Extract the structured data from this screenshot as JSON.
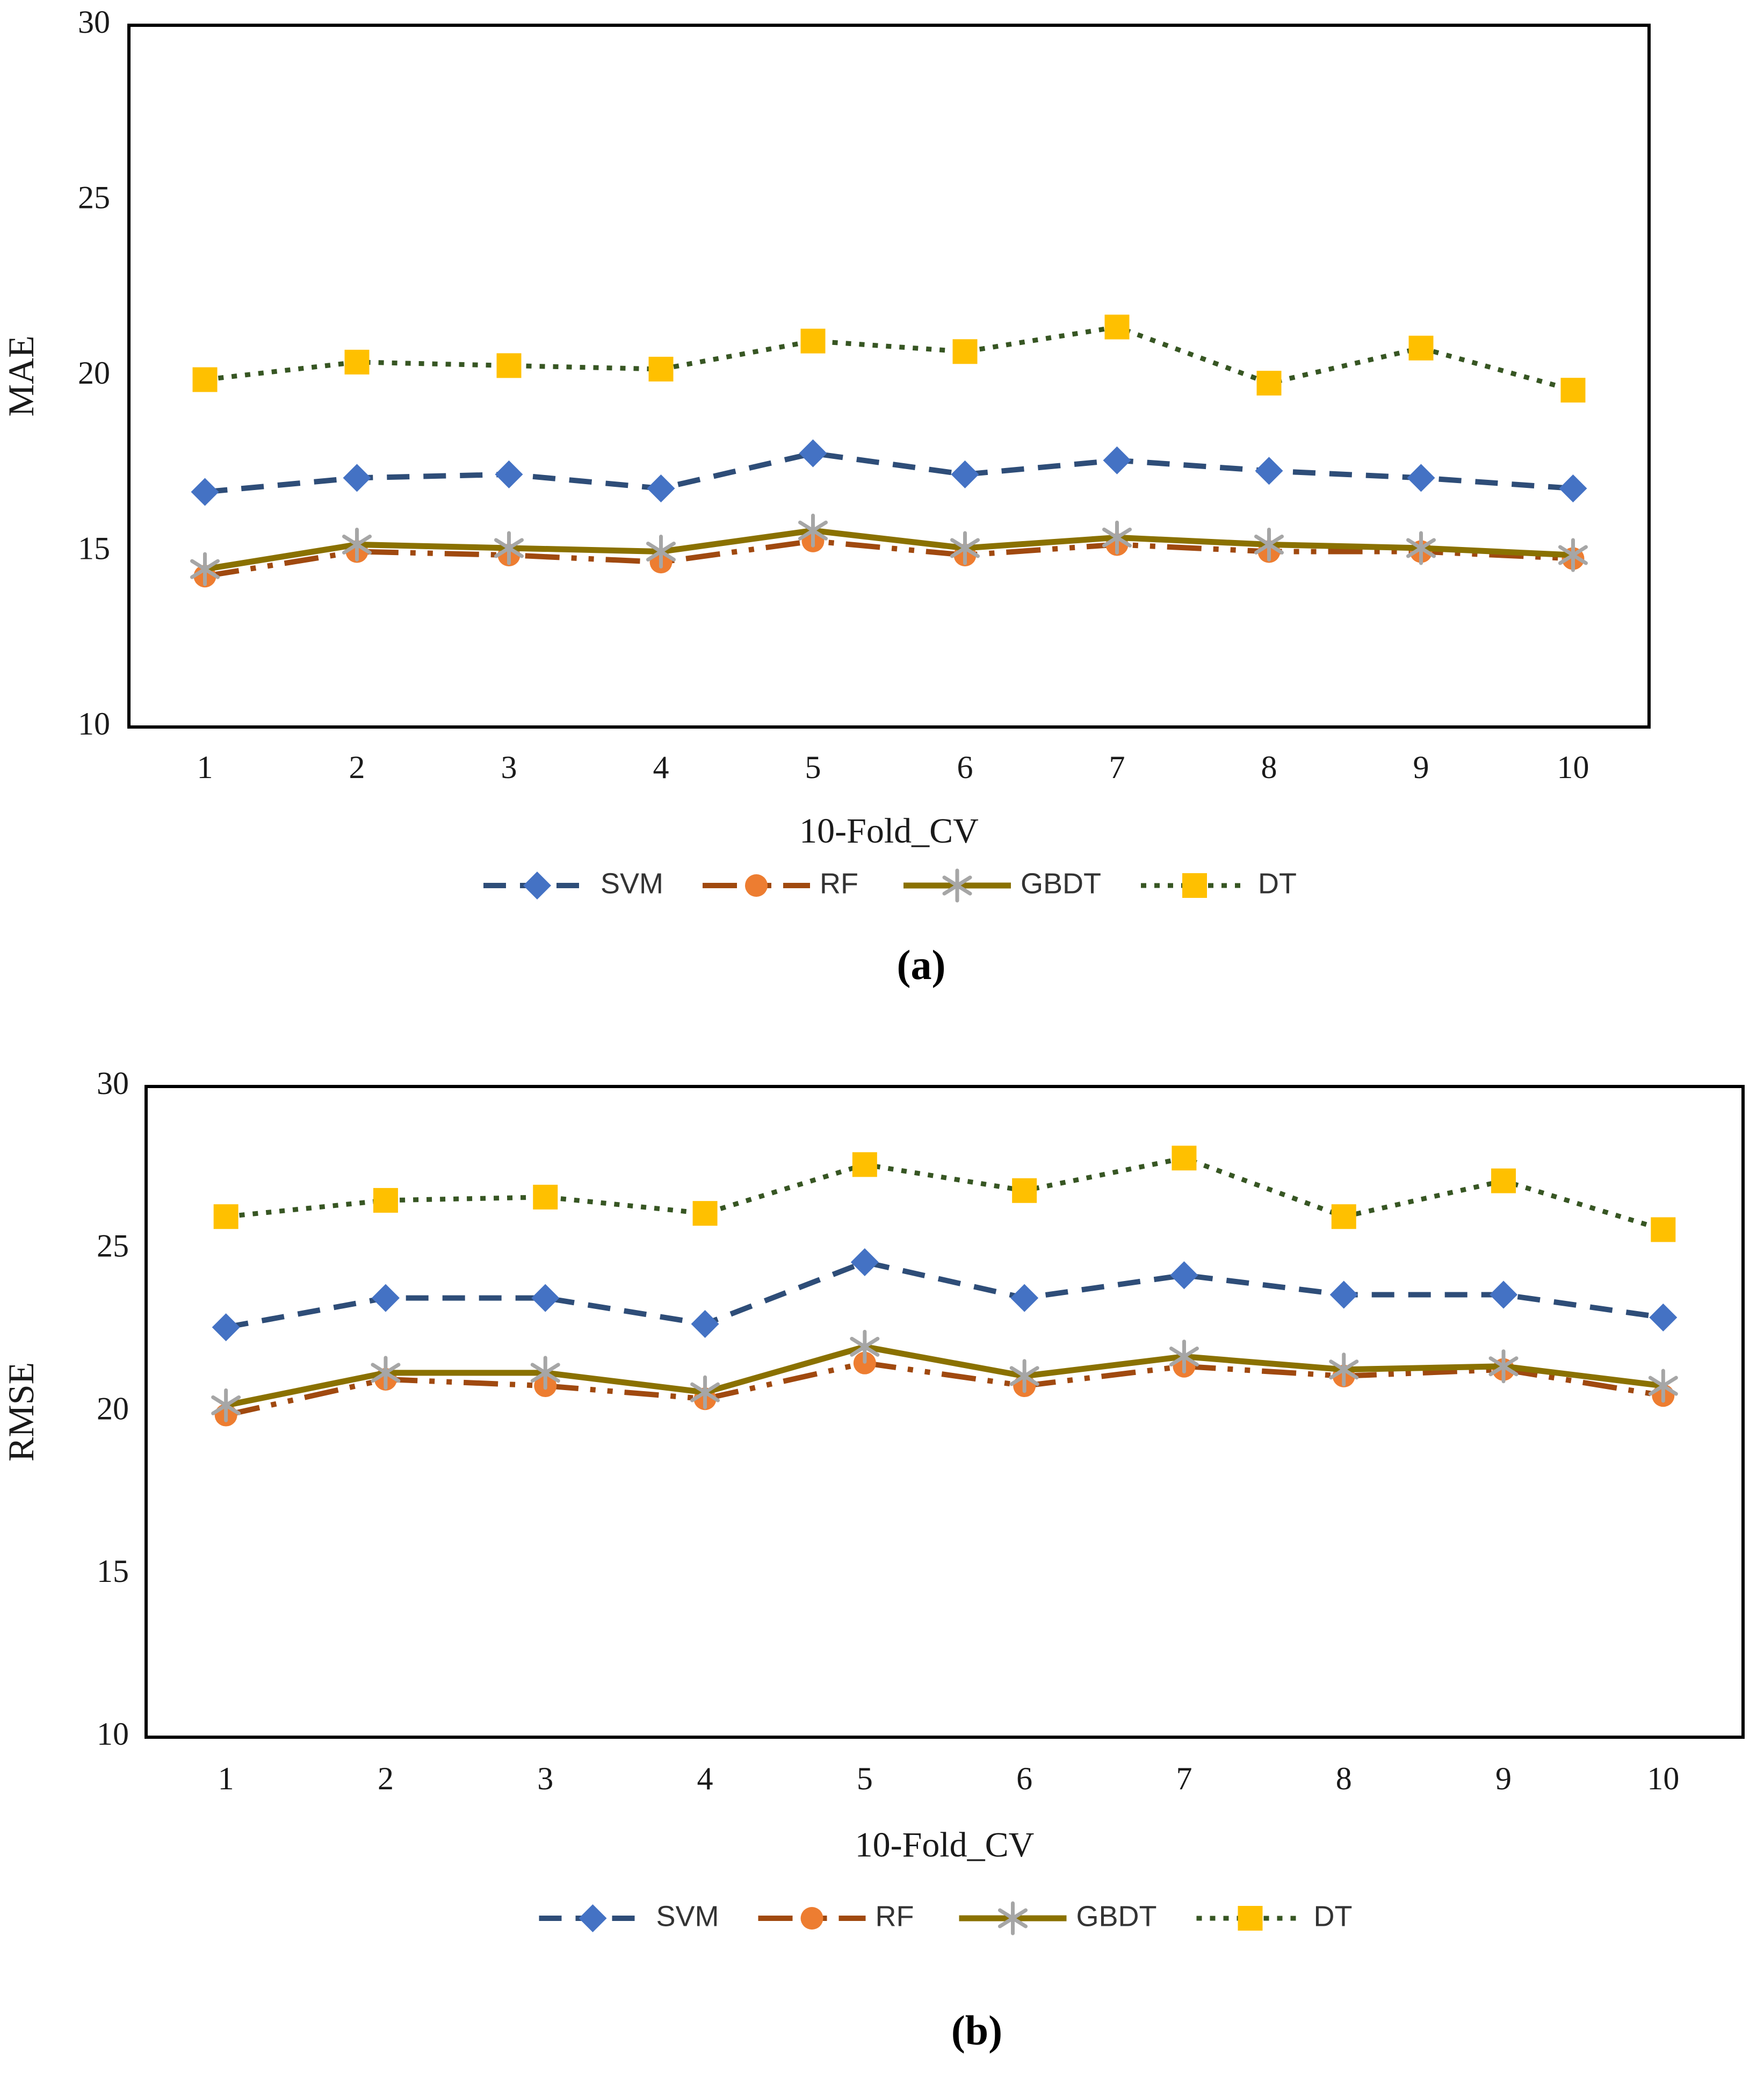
{
  "figure": {
    "background": "#ffffff",
    "axis_color": "#000000",
    "tick_label_color": "#1a1a1a",
    "legend_label_color": "#333333",
    "caption_color": "#000000"
  },
  "chart_data": [
    {
      "id": "a",
      "type": "line",
      "caption": "(a)",
      "xlabel": "10-Fold_CV",
      "ylabel": "MAE",
      "ylim": [
        10,
        30
      ],
      "yticks": [
        "10",
        "15",
        "20",
        "25",
        "30"
      ],
      "categories": [
        "1",
        "2",
        "3",
        "4",
        "5",
        "6",
        "7",
        "8",
        "9",
        "10"
      ],
      "grid": false,
      "legend_position": "bottom",
      "series": [
        {
          "name": "SVM",
          "marker": "diamond",
          "marker_color": "#4472C4",
          "line_color": "#2E4D78",
          "line_style": "dash",
          "values": [
            16.7,
            17.1,
            17.2,
            16.8,
            17.8,
            17.2,
            17.6,
            17.3,
            17.1,
            16.8
          ]
        },
        {
          "name": "RF",
          "marker": "circle",
          "marker_color": "#ED7D31",
          "line_color": "#A0490F",
          "line_style": "dash-dot-dot",
          "values": [
            14.3,
            15.0,
            14.9,
            14.7,
            15.3,
            14.9,
            15.2,
            15.0,
            15.0,
            14.8
          ]
        },
        {
          "name": "GBDT",
          "marker": "asterisk",
          "marker_color": "#A6A6A6",
          "line_color": "#8A7100",
          "line_style": "solid",
          "values": [
            14.5,
            15.2,
            15.1,
            15.0,
            15.6,
            15.1,
            15.4,
            15.2,
            15.1,
            14.9
          ]
        },
        {
          "name": "DT",
          "marker": "square",
          "marker_color": "#FFC000",
          "line_color": "#375623",
          "line_style": "dot",
          "values": [
            19.9,
            20.4,
            20.3,
            20.2,
            21.0,
            20.7,
            21.4,
            19.8,
            20.8,
            19.6
          ]
        }
      ]
    },
    {
      "id": "b",
      "type": "line",
      "caption": "(b)",
      "xlabel": "10-Fold_CV",
      "ylabel": "RMSE",
      "ylim": [
        10,
        30
      ],
      "yticks": [
        "10",
        "15",
        "20",
        "25",
        "30"
      ],
      "categories": [
        "1",
        "2",
        "3",
        "4",
        "5",
        "6",
        "7",
        "8",
        "9",
        "10"
      ],
      "grid": false,
      "legend_position": "bottom",
      "series": [
        {
          "name": "SVM",
          "marker": "diamond",
          "marker_color": "#4472C4",
          "line_color": "#2E4D78",
          "line_style": "dash",
          "values": [
            22.6,
            23.5,
            23.5,
            22.7,
            24.6,
            23.5,
            24.2,
            23.6,
            23.6,
            22.9
          ]
        },
        {
          "name": "RF",
          "marker": "circle",
          "marker_color": "#ED7D31",
          "line_color": "#A0490F",
          "line_style": "dash-dot-dot",
          "values": [
            19.9,
            21.0,
            20.8,
            20.4,
            21.5,
            20.8,
            21.4,
            21.1,
            21.3,
            20.5
          ]
        },
        {
          "name": "GBDT",
          "marker": "asterisk",
          "marker_color": "#A6A6A6",
          "line_color": "#8A7100",
          "line_style": "solid",
          "values": [
            20.2,
            21.2,
            21.2,
            20.6,
            22.0,
            21.1,
            21.7,
            21.3,
            21.4,
            20.8
          ]
        },
        {
          "name": "DT",
          "marker": "square",
          "marker_color": "#FFC000",
          "line_color": "#375623",
          "line_style": "dot",
          "values": [
            26.0,
            26.5,
            26.6,
            26.1,
            27.6,
            26.8,
            27.8,
            26.0,
            27.1,
            25.6
          ]
        }
      ]
    }
  ]
}
